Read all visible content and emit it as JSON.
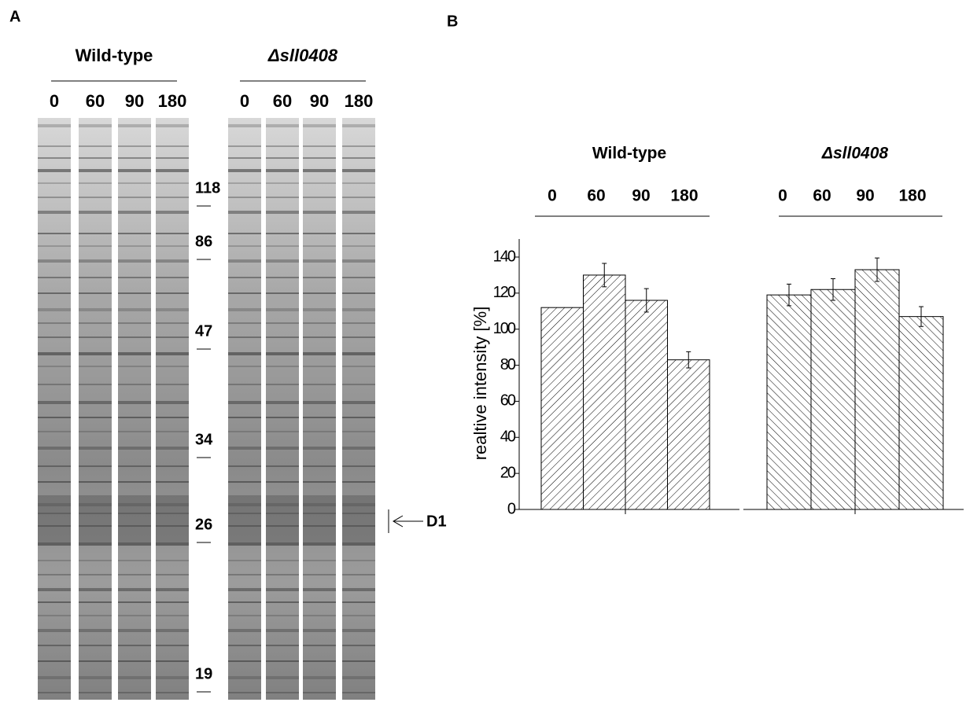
{
  "panel_a": {
    "label": "A",
    "groups": [
      {
        "name": "Wild-type",
        "lanes": [
          "0",
          "60",
          "90",
          "180"
        ]
      },
      {
        "name": "Δsll0408",
        "lanes": [
          "0",
          "60",
          "90",
          "180"
        ]
      }
    ],
    "markers": [
      118,
      86,
      47,
      34,
      26,
      19
    ],
    "annotation": "D1"
  },
  "chart_data": {
    "type": "bar",
    "panel_label": "B",
    "ylabel": "realtive intensity [%]",
    "ylim": [
      0,
      150
    ],
    "yticks": [
      0,
      20,
      40,
      60,
      80,
      100,
      120,
      140
    ],
    "panels": [
      {
        "name": "Wild-type",
        "categories": [
          "0",
          "60",
          "90",
          "180"
        ],
        "values": [
          112,
          130,
          116,
          83
        ],
        "errors": [
          null,
          6.5,
          6.5,
          4.5
        ]
      },
      {
        "name": "Δsll0408",
        "categories": [
          "0",
          "60",
          "90",
          "180"
        ],
        "values": [
          119,
          122,
          133,
          107
        ],
        "errors": [
          6,
          6,
          6.5,
          5.5
        ]
      }
    ]
  }
}
